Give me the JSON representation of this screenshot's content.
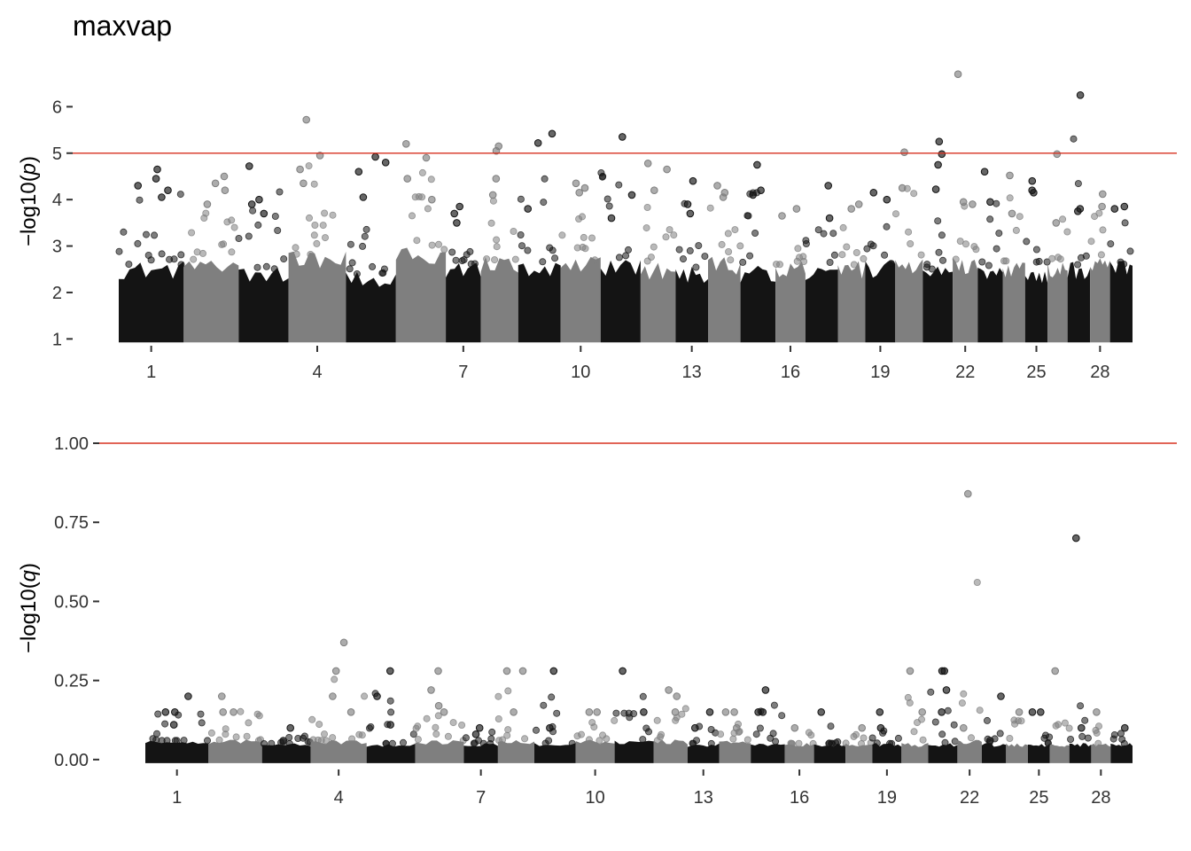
{
  "title": "maxvap",
  "chart_data": [
    {
      "type": "scatter",
      "subtype": "manhattan",
      "ylabel": "−log10(p)",
      "ylabel_main": "−log10(",
      "ylabel_var": "p",
      "ylabel_close": ")",
      "ylim": [
        0.93,
        7.0
      ],
      "yticks": [
        1,
        2,
        3,
        4,
        5,
        6
      ],
      "ytick_labels": [
        "1",
        "2",
        "3",
        "4",
        "5",
        "6"
      ],
      "xtick_labels": [
        "1",
        "4",
        "7",
        "10",
        "13",
        "16",
        "19",
        "22",
        "25",
        "28"
      ],
      "threshold": 5,
      "threshold_color": "#d7301f",
      "colors": [
        "#141414",
        "#7f7f7f"
      ],
      "chromosomes": [
        {
          "chr": "1",
          "bulk_top": 2.6,
          "peaks": [
            4.65,
            4.45,
            4.3,
            4.2,
            4.05
          ]
        },
        {
          "chr": "2",
          "bulk_top": 2.7,
          "peaks": [
            4.5,
            4.35,
            4.2,
            3.9
          ]
        },
        {
          "chr": "3",
          "bulk_top": 2.5,
          "peaks": [
            4.72,
            4.0,
            3.9,
            3.7
          ]
        },
        {
          "chr": "4",
          "bulk_top": 2.8,
          "peaks": [
            5.72,
            4.95,
            4.65,
            4.35
          ]
        },
        {
          "chr": "5",
          "bulk_top": 2.4,
          "peaks": [
            4.92,
            4.8,
            4.6,
            4.05
          ]
        },
        {
          "chr": "6",
          "bulk_top": 2.9,
          "peaks": [
            5.2,
            4.9,
            4.45,
            4.0
          ]
        },
        {
          "chr": "7",
          "bulk_top": 2.6,
          "peaks": [
            3.85,
            3.7,
            3.5
          ]
        },
        {
          "chr": "8",
          "bulk_top": 2.7,
          "peaks": [
            5.15,
            5.05,
            4.45,
            4.1
          ]
        },
        {
          "chr": "9",
          "bulk_top": 2.6,
          "peaks": [
            5.42,
            5.22,
            3.8
          ]
        },
        {
          "chr": "10",
          "bulk_top": 2.7,
          "peaks": [
            4.35,
            4.25,
            4.15
          ]
        },
        {
          "chr": "11",
          "bulk_top": 2.7,
          "peaks": [
            5.35,
            4.1,
            3.6
          ]
        },
        {
          "chr": "12",
          "bulk_top": 2.6,
          "peaks": [
            4.78,
            4.65,
            4.2
          ]
        },
        {
          "chr": "13",
          "bulk_top": 2.5,
          "peaks": [
            4.4,
            3.9,
            3.7
          ]
        },
        {
          "chr": "14",
          "bulk_top": 2.7,
          "peaks": [
            4.3,
            4.15,
            4.05
          ]
        },
        {
          "chr": "15",
          "bulk_top": 2.5,
          "peaks": [
            4.75,
            4.2,
            4.1
          ]
        },
        {
          "chr": "16",
          "bulk_top": 2.6,
          "peaks": [
            3.8,
            3.65
          ]
        },
        {
          "chr": "17",
          "bulk_top": 2.5,
          "peaks": [
            4.3,
            3.6
          ]
        },
        {
          "chr": "18",
          "bulk_top": 2.6,
          "peaks": [
            3.9,
            3.8
          ]
        },
        {
          "chr": "19",
          "bulk_top": 2.6,
          "peaks": [
            4.15,
            4.0
          ]
        },
        {
          "chr": "20",
          "bulk_top": 2.7,
          "peaks": [
            5.02,
            4.25
          ]
        },
        {
          "chr": "21",
          "bulk_top": 2.5,
          "peaks": [
            5.25,
            4.98,
            4.75,
            4.22
          ]
        },
        {
          "chr": "22",
          "bulk_top": 2.7,
          "peaks": [
            6.7,
            3.95,
            3.9
          ]
        },
        {
          "chr": "23",
          "bulk_top": 2.5,
          "peaks": [
            4.6,
            3.95
          ]
        },
        {
          "chr": "24",
          "bulk_top": 2.6,
          "peaks": [
            4.52,
            3.7
          ]
        },
        {
          "chr": "25",
          "bulk_top": 2.5,
          "peaks": [
            4.4,
            4.2,
            4.15
          ]
        },
        {
          "chr": "26",
          "bulk_top": 2.6,
          "peaks": [
            4.98,
            3.5
          ]
        },
        {
          "chr": "27",
          "bulk_top": 2.6,
          "peaks": [
            6.25,
            3.8,
            3.75
          ]
        },
        {
          "chr": "28",
          "bulk_top": 2.7,
          "peaks": [
            4.12,
            3.85
          ]
        },
        {
          "chr": "29",
          "bulk_top": 2.6,
          "peaks": [
            3.85,
            3.8
          ]
        }
      ]
    },
    {
      "type": "scatter",
      "subtype": "manhattan",
      "ylabel": "−log10(q)",
      "ylabel_main": "−log10(",
      "ylabel_var": "q",
      "ylabel_close": ")",
      "ylim": [
        -0.02,
        1.0
      ],
      "yticks": [
        0,
        0.25,
        0.5,
        0.75,
        1
      ],
      "ytick_labels": [
        "0.00",
        "0.25",
        "0.50",
        "0.75",
        "1.00"
      ],
      "xtick_labels": [
        "1",
        "4",
        "7",
        "10",
        "13",
        "16",
        "19",
        "22",
        "25",
        "28"
      ],
      "threshold": 1,
      "threshold_color": "#d7301f",
      "colors": [
        "#141414",
        "#7f7f7f"
      ],
      "chromosomes": [
        {
          "chr": "1",
          "bulk_top": 0.06,
          "peaks": [
            0.2,
            0.15,
            0.15,
            0.11
          ]
        },
        {
          "chr": "2",
          "bulk_top": 0.06,
          "peaks": [
            0.2,
            0.15,
            0.15
          ]
        },
        {
          "chr": "3",
          "bulk_top": 0.05,
          "peaks": [
            0.1,
            0.06
          ]
        },
        {
          "chr": "4",
          "bulk_top": 0.06,
          "peaks": [
            0.37,
            0.28,
            0.2,
            0.15
          ]
        },
        {
          "chr": "5",
          "bulk_top": 0.05,
          "peaks": [
            0.28,
            0.2,
            0.11
          ]
        },
        {
          "chr": "6",
          "bulk_top": 0.06,
          "peaks": [
            0.28,
            0.22,
            0.17,
            0.15
          ]
        },
        {
          "chr": "7",
          "bulk_top": 0.05,
          "peaks": [
            0.1,
            0.08
          ]
        },
        {
          "chr": "8",
          "bulk_top": 0.06,
          "peaks": [
            0.28,
            0.28,
            0.15
          ]
        },
        {
          "chr": "9",
          "bulk_top": 0.05,
          "peaks": [
            0.28,
            0.1
          ]
        },
        {
          "chr": "10",
          "bulk_top": 0.06,
          "peaks": [
            0.15,
            0.15
          ]
        },
        {
          "chr": "11",
          "bulk_top": 0.06,
          "peaks": [
            0.28,
            0.15
          ]
        },
        {
          "chr": "12",
          "bulk_top": 0.06,
          "peaks": [
            0.22,
            0.2,
            0.15
          ]
        },
        {
          "chr": "13",
          "bulk_top": 0.05,
          "peaks": [
            0.15,
            0.1
          ]
        },
        {
          "chr": "14",
          "bulk_top": 0.06,
          "peaks": [
            0.15,
            0.15,
            0.1
          ]
        },
        {
          "chr": "15",
          "bulk_top": 0.05,
          "peaks": [
            0.22,
            0.15,
            0.15
          ]
        },
        {
          "chr": "16",
          "bulk_top": 0.05,
          "peaks": [
            0.1
          ]
        },
        {
          "chr": "17",
          "bulk_top": 0.05,
          "peaks": [
            0.15
          ]
        },
        {
          "chr": "18",
          "bulk_top": 0.05,
          "peaks": [
            0.1
          ]
        },
        {
          "chr": "19",
          "bulk_top": 0.05,
          "peaks": [
            0.15,
            0.1
          ]
        },
        {
          "chr": "20",
          "bulk_top": 0.05,
          "peaks": [
            0.28,
            0.15
          ]
        },
        {
          "chr": "21",
          "bulk_top": 0.05,
          "peaks": [
            0.28,
            0.28,
            0.22,
            0.15
          ]
        },
        {
          "chr": "22",
          "bulk_top": 0.06,
          "peaks": [
            0.84,
            0.1
          ]
        },
        {
          "chr": "23",
          "bulk_top": 0.05,
          "peaks": [
            0.2,
            0.06
          ]
        },
        {
          "chr": "24",
          "bulk_top": 0.05,
          "peaks": [
            0.15
          ]
        },
        {
          "chr": "25",
          "bulk_top": 0.05,
          "peaks": [
            0.15,
            0.15
          ]
        },
        {
          "chr": "26",
          "bulk_top": 0.05,
          "peaks": [
            0.28
          ]
        },
        {
          "chr": "27",
          "bulk_top": 0.05,
          "peaks": [
            0.7,
            0.1
          ]
        },
        {
          "chr": "28",
          "bulk_top": 0.05,
          "peaks": [
            0.15
          ]
        },
        {
          "chr": "29",
          "bulk_top": 0.05,
          "peaks": [
            0.1
          ]
        }
      ]
    }
  ]
}
